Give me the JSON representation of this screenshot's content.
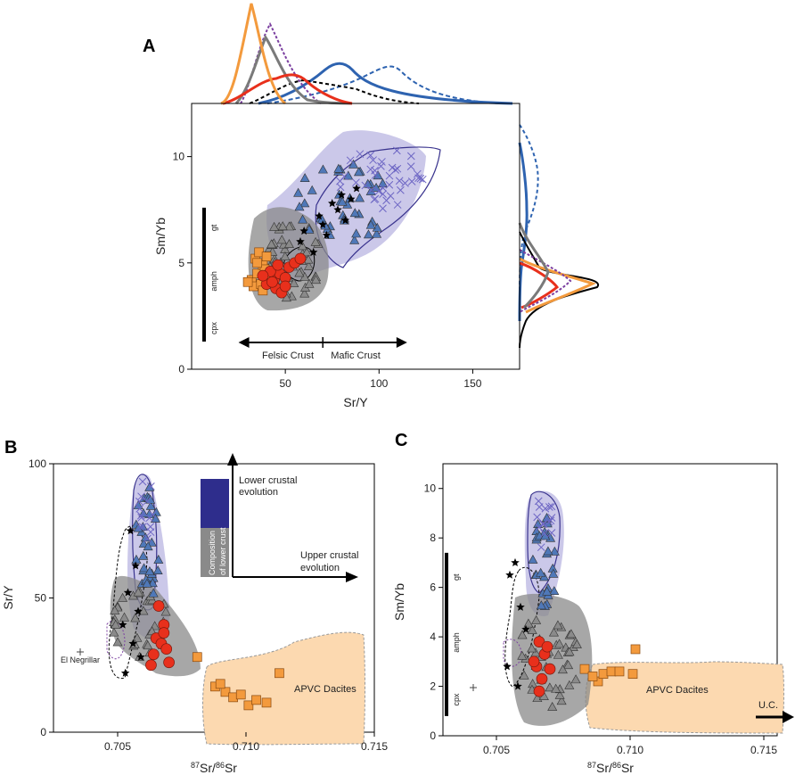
{
  "colors": {
    "blue_field": "#8c86cf",
    "blue_tri": "#4f78b8",
    "gray_field": "#8a8a8a",
    "orange": "#f39a3d",
    "orange_field": "#fcd9b0",
    "red": "#e8301c",
    "purple": "#7b3fa0",
    "black": "#000000",
    "curve_blue": "#2e63b0",
    "curve_gray": "#7a7a7a"
  },
  "chart_data": [
    {
      "id": "A",
      "type": "scatter",
      "panel_label": "A",
      "xlabel": "Sr/Y",
      "ylabel": "Sm/Yb",
      "xlim": [
        0,
        175
      ],
      "ylim": [
        0,
        12.5
      ],
      "xticks": [
        "50",
        "100",
        "150"
      ],
      "yticks": [
        "0",
        "5",
        "10"
      ],
      "xtick_values": [
        50,
        100,
        150
      ],
      "ytick_values": [
        0,
        5,
        10
      ],
      "mineral_bar": {
        "labels": [
          "gt",
          "amph",
          "cpx"
        ],
        "y_range": [
          1.3,
          7.6
        ]
      },
      "arrow_labels": {
        "left": "Felsic Crust",
        "right": "Mafic Crust"
      },
      "arrow_range": [
        25,
        115
      ],
      "arrow_divider": 70,
      "series": [
        {
          "name": "orange squares",
          "marker": "square",
          "x": [
            32,
            35,
            38,
            34,
            36,
            40,
            33,
            37,
            39,
            30,
            35,
            42,
            38
          ],
          "y": [
            4.2,
            4.5,
            4.9,
            5.2,
            5.5,
            5.3,
            3.9,
            4.0,
            4.7,
            4.1,
            5.0,
            4.4,
            3.7
          ]
        },
        {
          "name": "red circles",
          "marker": "circle",
          "x": [
            40,
            44,
            47,
            50,
            42,
            45,
            48,
            52,
            55,
            58,
            46,
            43,
            50,
            38
          ],
          "y": [
            4.0,
            4.2,
            4.5,
            4.3,
            4.6,
            3.8,
            3.6,
            4.8,
            5.0,
            5.2,
            4.9,
            4.1,
            3.9,
            4.4
          ]
        },
        {
          "name": "black stars",
          "marker": "star",
          "x": [
            60,
            68,
            75,
            80,
            85,
            70,
            65,
            78,
            88,
            72,
            58,
            82
          ],
          "y": [
            6.5,
            7.2,
            7.8,
            8.2,
            8.0,
            6.8,
            5.5,
            7.5,
            8.5,
            6.3,
            6.0,
            7.0
          ]
        }
      ]
    },
    {
      "id": "B",
      "type": "scatter",
      "panel_label": "B",
      "xlabel": "87Sr/86Sr",
      "ylabel": "Sr/Y",
      "xlim": [
        0.7025,
        0.715
      ],
      "ylim": [
        0,
        100
      ],
      "xticks": [
        "0.705",
        "0.710",
        "0.715"
      ],
      "yticks": [
        "0",
        "50",
        "100"
      ],
      "xtick_values": [
        0.705,
        0.71,
        0.715
      ],
      "ytick_values": [
        0,
        50,
        100
      ],
      "annotations": {
        "el_negrillar": "El Negrillar",
        "apvc": "APVC Dacites",
        "lower_crust_label_1": "Lower crustal",
        "lower_crust_label_2": "evolution",
        "upper_crust_label_1": "Upper crustal",
        "upper_crust_label_2": "evolution",
        "composition_1": "Composition",
        "composition_2": "of lower crust"
      },
      "series": [
        {
          "name": "orange squares",
          "marker": "square",
          "x": [
            0.7081,
            0.7088,
            0.7092,
            0.7095,
            0.7098,
            0.7101,
            0.7104,
            0.7108,
            0.7113,
            0.709
          ],
          "y": [
            28,
            17,
            15,
            13,
            14,
            10,
            12,
            11,
            22,
            18
          ]
        },
        {
          "name": "red circles",
          "marker": "circle",
          "x": [
            0.7066,
            0.7068,
            0.7065,
            0.7067,
            0.7069,
            0.7064,
            0.707,
            0.7063,
            0.7068
          ],
          "y": [
            47,
            40,
            35,
            33,
            31,
            29,
            26,
            25,
            37
          ]
        },
        {
          "name": "black stars",
          "marker": "star",
          "x": [
            0.7055,
            0.7057,
            0.7054,
            0.7058,
            0.7052,
            0.7056,
            0.7059,
            0.7053
          ],
          "y": [
            75,
            62,
            52,
            45,
            40,
            33,
            28,
            22
          ]
        }
      ]
    },
    {
      "id": "C",
      "type": "scatter",
      "panel_label": "C",
      "xlabel": "87Sr/86Sr",
      "ylabel": "Sm/Yb",
      "xlim": [
        0.703,
        0.7155
      ],
      "ylim": [
        0,
        11
      ],
      "xticks": [
        "0.705",
        "0.710",
        "0.715"
      ],
      "yticks": [
        "0",
        "2",
        "4",
        "6",
        "8",
        "10"
      ],
      "xtick_values": [
        0.705,
        0.71,
        0.715
      ],
      "ytick_values": [
        0,
        2,
        4,
        6,
        8,
        10
      ],
      "mineral_bar": {
        "labels": [
          "gt",
          "amph",
          "cpx"
        ],
        "y_range": [
          0.8,
          7.4
        ]
      },
      "annotations": {
        "apvc": "APVC Dacites",
        "uc": "U.C."
      },
      "series": [
        {
          "name": "orange squares",
          "marker": "square",
          "x": [
            0.7083,
            0.7088,
            0.709,
            0.7093,
            0.7096,
            0.7101,
            0.7102,
            0.7086
          ],
          "y": [
            2.7,
            2.2,
            2.5,
            2.6,
            2.6,
            2.5,
            3.5,
            2.4
          ]
        },
        {
          "name": "red circles",
          "marker": "circle",
          "x": [
            0.7066,
            0.7068,
            0.7065,
            0.707,
            0.7067,
            0.7069,
            0.7064,
            0.7066
          ],
          "y": [
            3.8,
            3.3,
            2.8,
            2.7,
            2.3,
            3.6,
            3.0,
            1.8
          ]
        },
        {
          "name": "black stars",
          "marker": "star",
          "x": [
            0.7055,
            0.7057,
            0.7059,
            0.7061,
            0.7054,
            0.7058
          ],
          "y": [
            6.5,
            7.0,
            5.2,
            4.3,
            2.8,
            2.0
          ]
        }
      ]
    }
  ]
}
